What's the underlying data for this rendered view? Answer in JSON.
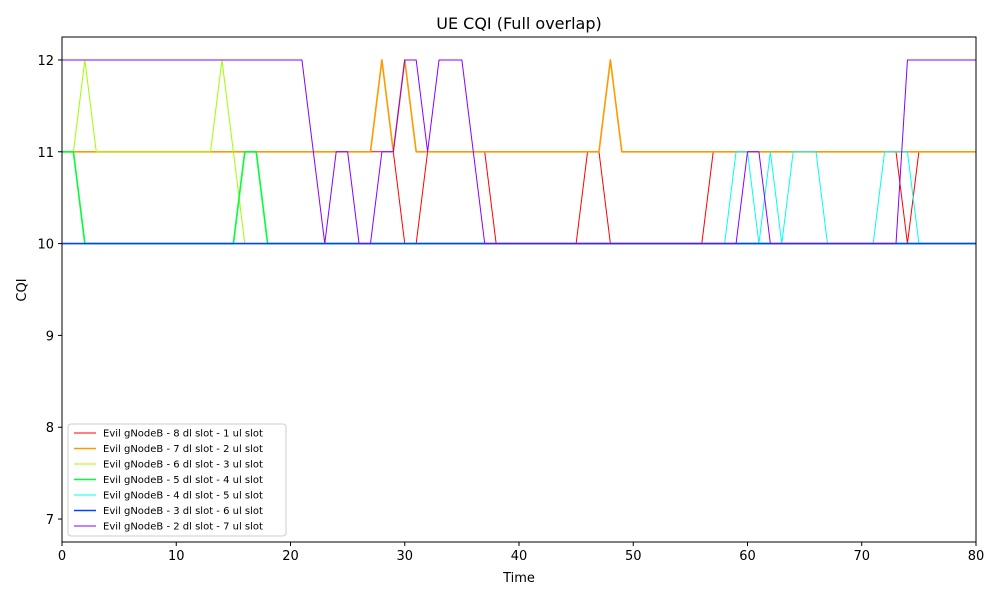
{
  "chart_data": {
    "type": "line",
    "title": "UE CQI (Full overlap)",
    "xlabel": "Time",
    "ylabel": "CQI",
    "xlim": [
      0,
      80
    ],
    "ylim": [
      6.75,
      12.25
    ],
    "xticks": [
      0,
      10,
      20,
      30,
      40,
      50,
      60,
      70,
      80
    ],
    "yticks": [
      7,
      8,
      9,
      10,
      11,
      12
    ],
    "grid": false,
    "legend_position": "bottom-left",
    "series": [
      {
        "name": "Evil gNodeB - 8 dl slot - 1 ul slot",
        "color": "#ff0000",
        "x": [
          0,
          29,
          30,
          31,
          32,
          37,
          38,
          45,
          46,
          47,
          48,
          56,
          57,
          73,
          74,
          75,
          80
        ],
        "y": [
          11,
          11,
          10,
          10,
          11,
          11,
          10,
          10,
          11,
          11,
          10,
          10,
          11,
          11,
          10,
          11,
          11
        ]
      },
      {
        "name": "Evil gNodeB - 7 dl slot - 2 ul slot",
        "color": "#ff9900",
        "x": [
          0,
          27,
          28,
          29,
          30,
          31,
          47,
          48,
          49,
          80
        ],
        "y": [
          11,
          11,
          12,
          11,
          12,
          11,
          11,
          12,
          11,
          11
        ]
      },
      {
        "name": "Evil gNodeB - 6 dl slot - 3 ul slot",
        "color": "#a0ff00",
        "x": [
          0,
          1,
          2,
          3,
          13,
          14,
          15,
          16,
          80
        ],
        "y": [
          11,
          11,
          12,
          11,
          11,
          12,
          11,
          10,
          10
        ]
      },
      {
        "name": "Evil gNodeB - 5 dl slot - 4 ul slot",
        "color": "#00ff33",
        "x": [
          0,
          1,
          2,
          15,
          16,
          17,
          18,
          80
        ],
        "y": [
          11,
          11,
          10,
          10,
          11,
          11,
          10,
          10
        ]
      },
      {
        "name": "Evil gNodeB - 4 dl slot - 5 ul slot",
        "color": "#00ffee",
        "x": [
          0,
          58,
          59,
          60,
          61,
          62,
          63,
          64,
          66,
          67,
          71,
          72,
          74,
          75,
          80
        ],
        "y": [
          10,
          10,
          11,
          11,
          10,
          11,
          10,
          11,
          11,
          10,
          10,
          11,
          11,
          10,
          10
        ]
      },
      {
        "name": "Evil gNodeB - 3 dl slot - 6 ul slot",
        "color": "#0044ff",
        "x": [
          0,
          80
        ],
        "y": [
          10,
          10
        ]
      },
      {
        "name": "Evil gNodeB - 2 dl slot - 7 ul slot",
        "color": "#8800ff",
        "x": [
          0,
          21,
          23,
          24,
          25,
          26,
          27,
          28,
          29,
          30,
          31,
          32,
          33,
          35,
          37,
          59,
          60,
          61,
          62,
          73,
          74,
          80
        ],
        "y": [
          12,
          12,
          10,
          11,
          11,
          10,
          10,
          11,
          11,
          12,
          12,
          11,
          12,
          12,
          10,
          10,
          11,
          11,
          10,
          10,
          12,
          12
        ]
      }
    ]
  }
}
